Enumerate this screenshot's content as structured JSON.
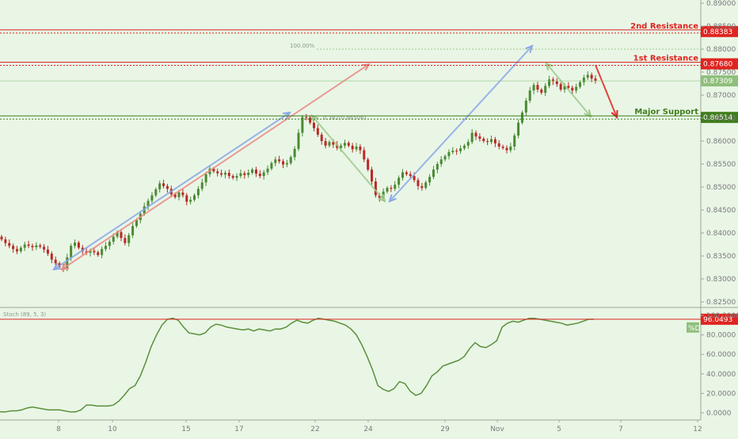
{
  "chart_data": [
    {
      "type": "candlestick",
      "price_axis": {
        "min": 0.825,
        "max": 0.89,
        "ticks": [
          "0.89000",
          "0.88500",
          "0.88000",
          "0.87500",
          "0.87000",
          "0.86500",
          "0.86000",
          "0.85500",
          "0.85000",
          "0.84500",
          "0.84000",
          "0.83500",
          "0.83000",
          "0.82500"
        ]
      },
      "time_axis": {
        "labels": [
          "8",
          "10",
          "15",
          "17",
          "22",
          "24",
          "29",
          "Nov",
          "5",
          "7",
          "12"
        ]
      },
      "levels": [
        {
          "name": "2nd Resistance",
          "value": 0.88383,
          "tag": "0.88383",
          "color": "#e0241f",
          "style": "double"
        },
        {
          "name": "1st Resistance",
          "value": 0.8768,
          "tag": "0.87680",
          "color": "#e0241f",
          "style": "double"
        },
        {
          "name": "Major Support",
          "value": 0.86514,
          "tag": "0.86514",
          "color": "#3f7d1c",
          "style": "double"
        }
      ],
      "current_price": {
        "value": 0.87309,
        "tag": "0.87309",
        "color": "#8fbf7c"
      },
      "annotations": {
        "fib_100": "100.00%",
        "fib_382": "0.382(0.86506)"
      },
      "candles_close": [
        0.8386,
        0.8378,
        0.8372,
        0.8365,
        0.836,
        0.8368,
        0.8375,
        0.8372,
        0.8369,
        0.8373,
        0.837,
        0.8364,
        0.8355,
        0.8342,
        0.8334,
        0.8326,
        0.8322,
        0.8347,
        0.8372,
        0.8379,
        0.8368,
        0.836,
        0.8357,
        0.8361,
        0.8358,
        0.8352,
        0.8365,
        0.8372,
        0.8381,
        0.8392,
        0.8402,
        0.8389,
        0.8378,
        0.8395,
        0.8415,
        0.8428,
        0.8442,
        0.8458,
        0.847,
        0.8482,
        0.8495,
        0.8508,
        0.8502,
        0.8496,
        0.8484,
        0.8478,
        0.8488,
        0.8482,
        0.8468,
        0.8472,
        0.8482,
        0.8496,
        0.851,
        0.8528,
        0.854,
        0.8534,
        0.853,
        0.8527,
        0.8531,
        0.8524,
        0.852,
        0.8524,
        0.853,
        0.8526,
        0.8531,
        0.8538,
        0.8529,
        0.8524,
        0.8532,
        0.854,
        0.8552,
        0.856,
        0.8556,
        0.8549,
        0.8552,
        0.8565,
        0.8583,
        0.8618,
        0.8652,
        0.8651,
        0.864,
        0.8628,
        0.8614,
        0.86,
        0.859,
        0.8598,
        0.8592,
        0.8585,
        0.859,
        0.8596,
        0.859,
        0.8582,
        0.8588,
        0.858,
        0.856,
        0.8538,
        0.8512,
        0.8482,
        0.8476,
        0.849,
        0.8498,
        0.8496,
        0.8505,
        0.852,
        0.8532,
        0.8528,
        0.8524,
        0.8515,
        0.8502,
        0.8498,
        0.851,
        0.8522,
        0.8538,
        0.855,
        0.856,
        0.8567,
        0.8576,
        0.8579,
        0.8578,
        0.8584,
        0.859,
        0.8598,
        0.8618,
        0.861,
        0.8605,
        0.86,
        0.8598,
        0.8604,
        0.8595,
        0.8588,
        0.8585,
        0.858,
        0.8588,
        0.8612,
        0.864,
        0.8662,
        0.8688,
        0.871,
        0.8722,
        0.8712,
        0.8705,
        0.872,
        0.8734,
        0.873,
        0.8724,
        0.8712,
        0.872,
        0.8716,
        0.871,
        0.8718,
        0.8728,
        0.8738,
        0.8744,
        0.8736,
        0.8731
      ],
      "indicator": {
        "name": "Stoch (89, 5, 3)",
        "ticks": [
          "100.0000",
          "80.0000",
          "60.0000",
          "40.0000",
          "20.0000",
          "0.0000"
        ],
        "ymin": 0,
        "ymax": 100,
        "level_tag": "96.0493",
        "level_value": 96.0493,
        "d_label": "%D",
        "values": [
          1,
          1,
          2,
          2,
          3,
          5,
          6,
          5,
          4,
          3,
          3,
          3,
          2,
          1,
          1,
          3,
          8,
          8,
          7,
          7,
          7,
          8,
          12,
          18,
          25,
          28,
          38,
          52,
          68,
          80,
          90,
          96,
          97,
          95,
          88,
          82,
          81,
          80,
          82,
          88,
          91,
          90,
          88,
          87,
          86,
          85,
          86,
          84,
          86,
          85,
          84,
          86,
          86,
          88,
          92,
          95,
          93,
          92,
          95,
          97,
          96,
          95,
          94,
          92,
          90,
          86,
          80,
          70,
          58,
          44,
          28,
          24,
          22,
          25,
          32,
          30,
          22,
          18,
          20,
          28,
          38,
          42,
          48,
          50,
          52,
          54,
          58,
          66,
          72,
          68,
          67,
          70,
          74,
          88,
          92,
          94,
          93,
          95,
          97,
          97,
          96,
          95,
          94,
          93,
          92,
          90,
          91,
          92,
          94,
          96,
          96
        ]
      }
    }
  ]
}
